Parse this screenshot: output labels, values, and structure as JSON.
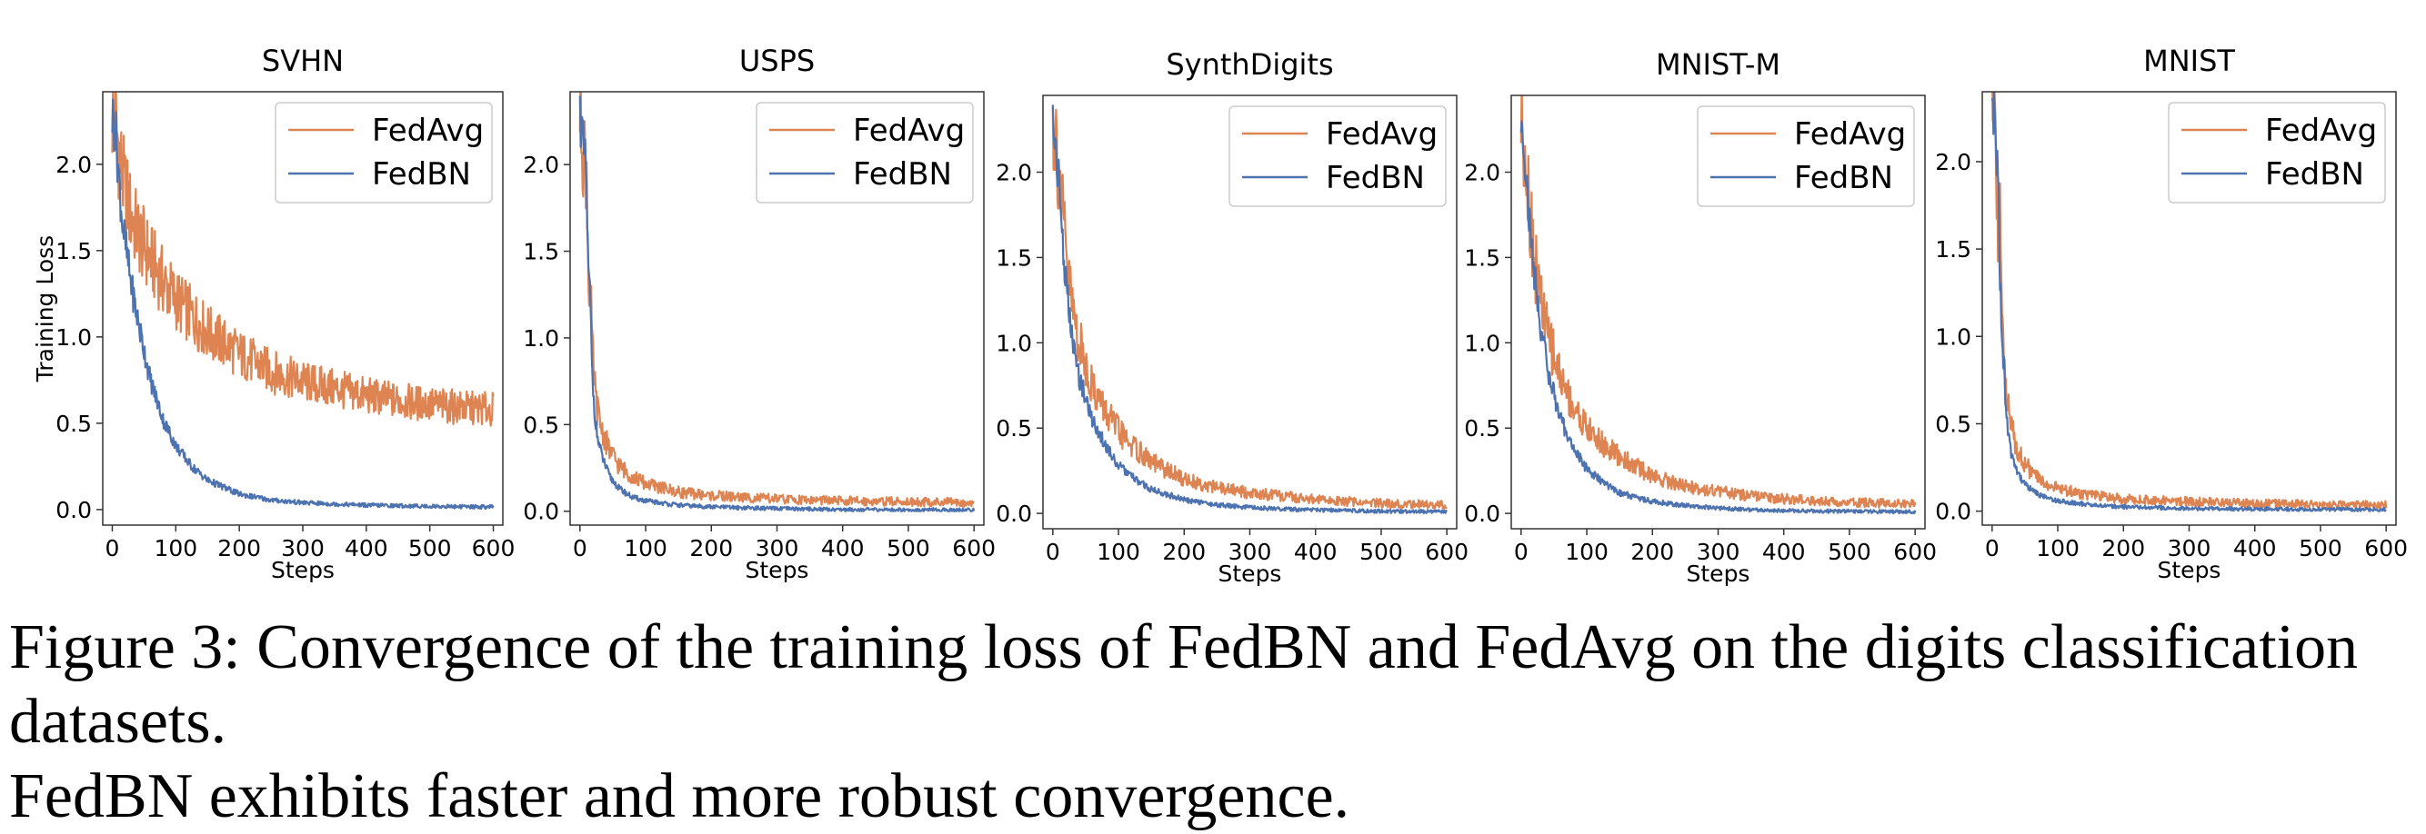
{
  "colors": {
    "fedavg": "#dd8452",
    "fedbn": "#4c72b0"
  },
  "caption": {
    "line1": "Figure 3: Convergence of the training loss of FedBN and FedAvg on the digits classification datasets.",
    "line2": "FedBN exhibits faster and more robust convergence."
  },
  "chart_data": [
    {
      "type": "line",
      "title": "SVHN",
      "xlabel": "Steps",
      "ylabel": "Training Loss",
      "xlim": [
        -15,
        615
      ],
      "ylim": [
        -0.09,
        2.42
      ],
      "xticks": [
        0,
        100,
        200,
        300,
        400,
        500,
        600
      ],
      "xtick_labels": [
        "0",
        "100",
        "200",
        "300",
        "400",
        "500",
        "600"
      ],
      "yticks": [
        0,
        0.5,
        1,
        1.5,
        2
      ],
      "ytick_labels": [
        "0.0",
        "0.5",
        "1.0",
        "1.5",
        "2.0"
      ],
      "legend": "top-right",
      "series": [
        {
          "name": "FedAvg",
          "color": "#dd8452",
          "x": [
            0,
            5,
            10,
            15,
            20,
            30,
            40,
            60,
            80,
            100,
            125,
            150,
            200,
            250,
            300,
            350,
            400,
            450,
            500,
            550,
            600
          ],
          "y": [
            2.28,
            2.25,
            2.1,
            1.95,
            1.85,
            1.7,
            1.6,
            1.45,
            1.32,
            1.22,
            1.12,
            1.03,
            0.9,
            0.8,
            0.74,
            0.7,
            0.66,
            0.63,
            0.61,
            0.59,
            0.58
          ]
        },
        {
          "name": "FedBN",
          "color": "#4c72b0",
          "x": [
            0,
            5,
            10,
            15,
            20,
            30,
            40,
            60,
            80,
            100,
            125,
            150,
            200,
            250,
            300,
            350,
            400,
            450,
            500,
            550,
            600
          ],
          "y": [
            2.28,
            2.2,
            1.95,
            1.7,
            1.55,
            1.3,
            1.1,
            0.75,
            0.52,
            0.37,
            0.25,
            0.17,
            0.09,
            0.055,
            0.04,
            0.032,
            0.026,
            0.022,
            0.019,
            0.017,
            0.015
          ]
        }
      ]
    },
    {
      "type": "line",
      "title": "USPS",
      "xlabel": "Steps",
      "ylabel": "",
      "xlim": [
        -15,
        615
      ],
      "ylim": [
        -0.08,
        2.42
      ],
      "xticks": [
        0,
        100,
        200,
        300,
        400,
        500,
        600
      ],
      "xtick_labels": [
        "0",
        "100",
        "200",
        "300",
        "400",
        "500",
        "600"
      ],
      "yticks": [
        0,
        0.5,
        1,
        1.5,
        2
      ],
      "ytick_labels": [
        "0.0",
        "0.5",
        "1.0",
        "1.5",
        "2.0"
      ],
      "legend": "top-right",
      "series": [
        {
          "name": "FedAvg",
          "color": "#dd8452",
          "x": [
            0,
            3,
            6,
            8,
            10,
            12,
            14,
            16,
            18,
            20,
            24,
            28,
            35,
            45,
            60,
            80,
            100,
            150,
            200,
            300,
            400,
            500,
            600
          ],
          "y": [
            2.3,
            2.25,
            2.0,
            2.05,
            1.95,
            1.6,
            1.3,
            1.25,
            1.0,
            0.85,
            0.65,
            0.55,
            0.45,
            0.35,
            0.26,
            0.2,
            0.16,
            0.11,
            0.09,
            0.07,
            0.06,
            0.055,
            0.05
          ]
        },
        {
          "name": "FedBN",
          "color": "#4c72b0",
          "x": [
            0,
            3,
            6,
            8,
            10,
            12,
            14,
            16,
            18,
            20,
            24,
            28,
            35,
            45,
            60,
            80,
            100,
            150,
            200,
            300,
            400,
            500,
            600
          ],
          "y": [
            2.3,
            2.2,
            2.05,
            2.0,
            1.9,
            1.45,
            1.3,
            1.2,
            0.85,
            0.7,
            0.5,
            0.4,
            0.3,
            0.2,
            0.13,
            0.08,
            0.06,
            0.035,
            0.025,
            0.015,
            0.01,
            0.008,
            0.007
          ]
        }
      ]
    },
    {
      "type": "line",
      "title": "SynthDigits",
      "xlabel": "Steps",
      "ylabel": "",
      "xlim": [
        -15,
        615
      ],
      "ylim": [
        -0.09,
        2.45
      ],
      "xticks": [
        0,
        100,
        200,
        300,
        400,
        500,
        600
      ],
      "xtick_labels": [
        "0",
        "100",
        "200",
        "300",
        "400",
        "500",
        "600"
      ],
      "yticks": [
        0,
        0.5,
        1,
        1.5,
        2
      ],
      "ytick_labels": [
        "0.0",
        "0.5",
        "1.0",
        "1.5",
        "2.0"
      ],
      "legend": "top-right",
      "series": [
        {
          "name": "FedAvg",
          "color": "#dd8452",
          "x": [
            0,
            5,
            10,
            15,
            20,
            30,
            40,
            60,
            80,
            100,
            125,
            150,
            200,
            250,
            300,
            350,
            400,
            450,
            500,
            550,
            600
          ],
          "y": [
            2.3,
            2.2,
            2.0,
            1.75,
            1.5,
            1.2,
            1.0,
            0.75,
            0.6,
            0.48,
            0.38,
            0.3,
            0.2,
            0.15,
            0.12,
            0.1,
            0.08,
            0.07,
            0.06,
            0.055,
            0.05
          ]
        },
        {
          "name": "FedBN",
          "color": "#4c72b0",
          "x": [
            0,
            5,
            10,
            15,
            20,
            30,
            40,
            60,
            80,
            100,
            125,
            150,
            200,
            250,
            300,
            350,
            400,
            450,
            500,
            550,
            600
          ],
          "y": [
            2.3,
            2.15,
            1.9,
            1.6,
            1.35,
            1.0,
            0.8,
            0.55,
            0.4,
            0.28,
            0.2,
            0.14,
            0.08,
            0.05,
            0.035,
            0.025,
            0.02,
            0.016,
            0.013,
            0.011,
            0.01
          ]
        }
      ]
    },
    {
      "type": "line",
      "title": "MNIST-M",
      "xlabel": "Steps",
      "ylabel": "",
      "xlim": [
        -15,
        615
      ],
      "ylim": [
        -0.09,
        2.45
      ],
      "xticks": [
        0,
        100,
        200,
        300,
        400,
        500,
        600
      ],
      "xtick_labels": [
        "0",
        "100",
        "200",
        "300",
        "400",
        "500",
        "600"
      ],
      "yticks": [
        0,
        0.5,
        1,
        1.5,
        2
      ],
      "ytick_labels": [
        "0.0",
        "0.5",
        "1.0",
        "1.5",
        "2.0"
      ],
      "legend": "top-right",
      "series": [
        {
          "name": "FedAvg",
          "color": "#dd8452",
          "x": [
            0,
            5,
            10,
            15,
            20,
            30,
            40,
            60,
            80,
            100,
            125,
            150,
            200,
            250,
            300,
            350,
            400,
            450,
            500,
            550,
            600
          ],
          "y": [
            2.3,
            2.2,
            1.95,
            1.7,
            1.5,
            1.25,
            1.05,
            0.8,
            0.62,
            0.5,
            0.4,
            0.33,
            0.22,
            0.16,
            0.13,
            0.1,
            0.085,
            0.075,
            0.065,
            0.06,
            0.055
          ]
        },
        {
          "name": "FedBN",
          "color": "#4c72b0",
          "x": [
            0,
            5,
            10,
            15,
            20,
            30,
            40,
            60,
            80,
            100,
            125,
            150,
            200,
            250,
            300,
            350,
            400,
            450,
            500,
            550,
            600
          ],
          "y": [
            2.3,
            2.15,
            1.85,
            1.6,
            1.4,
            1.1,
            0.85,
            0.55,
            0.38,
            0.26,
            0.18,
            0.12,
            0.07,
            0.045,
            0.03,
            0.022,
            0.017,
            0.014,
            0.012,
            0.01,
            0.009
          ]
        }
      ]
    },
    {
      "type": "line",
      "title": "MNIST",
      "xlabel": "Steps",
      "ylabel": "",
      "xlim": [
        -15,
        615
      ],
      "ylim": [
        -0.08,
        2.4
      ],
      "xticks": [
        0,
        100,
        200,
        300,
        400,
        500,
        600
      ],
      "xtick_labels": [
        "0",
        "100",
        "200",
        "300",
        "400",
        "500",
        "600"
      ],
      "yticks": [
        0,
        0.5,
        1,
        1.5,
        2
      ],
      "ytick_labels": [
        "0.0",
        "0.5",
        "1.0",
        "1.5",
        "2.0"
      ],
      "legend": "top-right",
      "series": [
        {
          "name": "FedAvg",
          "color": "#dd8452",
          "x": [
            0,
            3,
            6,
            8,
            10,
            12,
            14,
            16,
            18,
            20,
            24,
            28,
            35,
            45,
            60,
            80,
            100,
            150,
            200,
            300,
            400,
            500,
            600
          ],
          "y": [
            2.27,
            2.25,
            2.0,
            1.75,
            1.55,
            1.7,
            1.4,
            1.2,
            0.95,
            0.8,
            0.6,
            0.5,
            0.4,
            0.3,
            0.22,
            0.16,
            0.13,
            0.09,
            0.07,
            0.055,
            0.045,
            0.04,
            0.035
          ]
        },
        {
          "name": "FedBN",
          "color": "#4c72b0",
          "x": [
            0,
            3,
            6,
            8,
            10,
            12,
            14,
            16,
            18,
            20,
            24,
            28,
            35,
            45,
            60,
            80,
            100,
            150,
            200,
            300,
            400,
            500,
            600
          ],
          "y": [
            2.27,
            2.25,
            2.1,
            1.95,
            1.85,
            1.3,
            1.15,
            0.9,
            0.85,
            0.65,
            0.45,
            0.35,
            0.26,
            0.18,
            0.12,
            0.08,
            0.06,
            0.035,
            0.025,
            0.015,
            0.012,
            0.01,
            0.009
          ]
        }
      ]
    }
  ]
}
